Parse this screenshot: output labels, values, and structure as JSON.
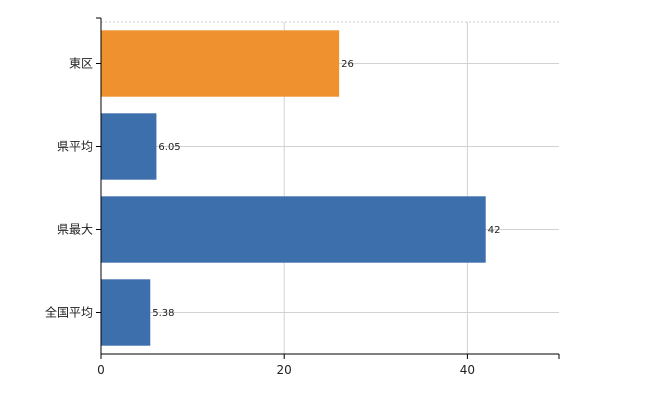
{
  "chart_data": {
    "type": "bar",
    "orientation": "horizontal",
    "categories": [
      "東区",
      "県平均",
      "県最大",
      "全国平均"
    ],
    "values": [
      26,
      6.05,
      42,
      5.38
    ],
    "value_labels": [
      "26",
      "6.05",
      "42",
      "5.38"
    ],
    "bar_colors": [
      "#f0912f",
      "#3e6fad",
      "#3e6fad",
      "#3e6fad"
    ],
    "xlim": [
      0,
      50
    ],
    "x_ticks": [
      0,
      20,
      40
    ],
    "x_tick_labels": [
      "0",
      "20",
      "40"
    ],
    "grid": true,
    "title": "",
    "xlabel": "",
    "ylabel": ""
  }
}
